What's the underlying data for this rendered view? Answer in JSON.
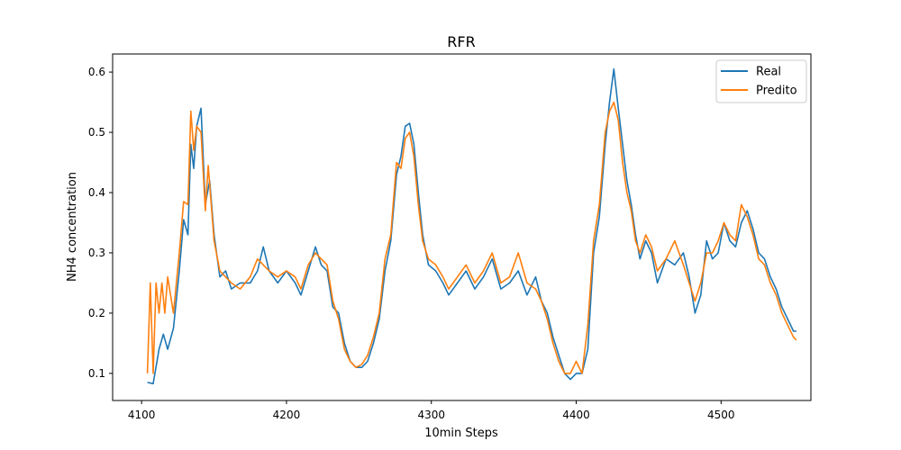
{
  "chart_data": {
    "type": "line",
    "title": "RFR",
    "xlabel": "10min Steps",
    "ylabel": "NH4 concentration",
    "xlim": [
      4080,
      4562
    ],
    "ylim": [
      0.055,
      0.63
    ],
    "xticks": [
      4100,
      4200,
      4300,
      4400,
      4500
    ],
    "yticks": [
      0.1,
      0.2,
      0.3,
      0.4,
      0.5,
      0.6
    ],
    "grid": false,
    "legend_position": "top-right",
    "series": [
      {
        "name": "Real",
        "color": "#1f77b4",
        "points": [
          [
            4104,
            0.085
          ],
          [
            4108,
            0.083
          ],
          [
            4112,
            0.14
          ],
          [
            4115,
            0.165
          ],
          [
            4118,
            0.14
          ],
          [
            4122,
            0.175
          ],
          [
            4126,
            0.27
          ],
          [
            4129,
            0.355
          ],
          [
            4132,
            0.33
          ],
          [
            4134,
            0.48
          ],
          [
            4136,
            0.44
          ],
          [
            4138,
            0.51
          ],
          [
            4141,
            0.54
          ],
          [
            4144,
            0.38
          ],
          [
            4147,
            0.42
          ],
          [
            4150,
            0.33
          ],
          [
            4154,
            0.26
          ],
          [
            4158,
            0.27
          ],
          [
            4162,
            0.24
          ],
          [
            4168,
            0.25
          ],
          [
            4175,
            0.25
          ],
          [
            4180,
            0.27
          ],
          [
            4184,
            0.31
          ],
          [
            4188,
            0.27
          ],
          [
            4194,
            0.25
          ],
          [
            4200,
            0.27
          ],
          [
            4206,
            0.25
          ],
          [
            4210,
            0.23
          ],
          [
            4215,
            0.27
          ],
          [
            4220,
            0.31
          ],
          [
            4224,
            0.28
          ],
          [
            4228,
            0.27
          ],
          [
            4232,
            0.21
          ],
          [
            4236,
            0.2
          ],
          [
            4240,
            0.15
          ],
          [
            4244,
            0.12
          ],
          [
            4248,
            0.11
          ],
          [
            4252,
            0.11
          ],
          [
            4256,
            0.12
          ],
          [
            4260,
            0.15
          ],
          [
            4264,
            0.19
          ],
          [
            4268,
            0.27
          ],
          [
            4272,
            0.32
          ],
          [
            4276,
            0.43
          ],
          [
            4279,
            0.46
          ],
          [
            4282,
            0.51
          ],
          [
            4285,
            0.515
          ],
          [
            4288,
            0.48
          ],
          [
            4291,
            0.4
          ],
          [
            4294,
            0.33
          ],
          [
            4298,
            0.28
          ],
          [
            4303,
            0.27
          ],
          [
            4308,
            0.25
          ],
          [
            4312,
            0.23
          ],
          [
            4318,
            0.25
          ],
          [
            4324,
            0.27
          ],
          [
            4330,
            0.24
          ],
          [
            4336,
            0.26
          ],
          [
            4342,
            0.29
          ],
          [
            4348,
            0.24
          ],
          [
            4354,
            0.25
          ],
          [
            4360,
            0.27
          ],
          [
            4366,
            0.23
          ],
          [
            4372,
            0.26
          ],
          [
            4376,
            0.22
          ],
          [
            4380,
            0.2
          ],
          [
            4384,
            0.16
          ],
          [
            4388,
            0.13
          ],
          [
            4392,
            0.1
          ],
          [
            4396,
            0.09
          ],
          [
            4400,
            0.1
          ],
          [
            4404,
            0.1
          ],
          [
            4408,
            0.14
          ],
          [
            4412,
            0.3
          ],
          [
            4416,
            0.36
          ],
          [
            4420,
            0.48
          ],
          [
            4423,
            0.55
          ],
          [
            4426,
            0.605
          ],
          [
            4429,
            0.54
          ],
          [
            4432,
            0.48
          ],
          [
            4435,
            0.42
          ],
          [
            4438,
            0.38
          ],
          [
            4441,
            0.33
          ],
          [
            4444,
            0.29
          ],
          [
            4448,
            0.32
          ],
          [
            4452,
            0.3
          ],
          [
            4456,
            0.25
          ],
          [
            4462,
            0.29
          ],
          [
            4468,
            0.28
          ],
          [
            4474,
            0.3
          ],
          [
            4478,
            0.26
          ],
          [
            4482,
            0.2
          ],
          [
            4486,
            0.23
          ],
          [
            4490,
            0.32
          ],
          [
            4494,
            0.29
          ],
          [
            4498,
            0.3
          ],
          [
            4502,
            0.35
          ],
          [
            4506,
            0.32
          ],
          [
            4510,
            0.31
          ],
          [
            4514,
            0.35
          ],
          [
            4518,
            0.37
          ],
          [
            4522,
            0.34
          ],
          [
            4526,
            0.3
          ],
          [
            4530,
            0.29
          ],
          [
            4534,
            0.26
          ],
          [
            4538,
            0.24
          ],
          [
            4542,
            0.21
          ],
          [
            4546,
            0.19
          ],
          [
            4550,
            0.17
          ],
          [
            4552,
            0.17
          ]
        ]
      },
      {
        "name": "Predito",
        "color": "#ff7f0e",
        "points": [
          [
            4104,
            0.1
          ],
          [
            4106,
            0.25
          ],
          [
            4108,
            0.1
          ],
          [
            4110,
            0.25
          ],
          [
            4112,
            0.2
          ],
          [
            4114,
            0.25
          ],
          [
            4116,
            0.2
          ],
          [
            4118,
            0.26
          ],
          [
            4122,
            0.2
          ],
          [
            4126,
            0.3
          ],
          [
            4129,
            0.385
          ],
          [
            4132,
            0.38
          ],
          [
            4134,
            0.535
          ],
          [
            4136,
            0.47
          ],
          [
            4138,
            0.51
          ],
          [
            4141,
            0.5
          ],
          [
            4144,
            0.37
          ],
          [
            4146,
            0.445
          ],
          [
            4150,
            0.32
          ],
          [
            4154,
            0.27
          ],
          [
            4158,
            0.26
          ],
          [
            4162,
            0.25
          ],
          [
            4168,
            0.24
          ],
          [
            4175,
            0.26
          ],
          [
            4180,
            0.29
          ],
          [
            4184,
            0.28
          ],
          [
            4188,
            0.27
          ],
          [
            4194,
            0.26
          ],
          [
            4200,
            0.27
          ],
          [
            4206,
            0.26
          ],
          [
            4210,
            0.24
          ],
          [
            4215,
            0.28
          ],
          [
            4220,
            0.3
          ],
          [
            4224,
            0.29
          ],
          [
            4228,
            0.28
          ],
          [
            4232,
            0.22
          ],
          [
            4236,
            0.19
          ],
          [
            4240,
            0.14
          ],
          [
            4244,
            0.12
          ],
          [
            4248,
            0.11
          ],
          [
            4252,
            0.115
          ],
          [
            4256,
            0.13
          ],
          [
            4260,
            0.16
          ],
          [
            4264,
            0.2
          ],
          [
            4268,
            0.29
          ],
          [
            4272,
            0.33
          ],
          [
            4276,
            0.45
          ],
          [
            4279,
            0.44
          ],
          [
            4282,
            0.49
          ],
          [
            4285,
            0.5
          ],
          [
            4288,
            0.46
          ],
          [
            4291,
            0.38
          ],
          [
            4294,
            0.32
          ],
          [
            4298,
            0.29
          ],
          [
            4303,
            0.28
          ],
          [
            4308,
            0.26
          ],
          [
            4312,
            0.24
          ],
          [
            4318,
            0.26
          ],
          [
            4324,
            0.28
          ],
          [
            4330,
            0.25
          ],
          [
            4336,
            0.27
          ],
          [
            4342,
            0.3
          ],
          [
            4348,
            0.25
          ],
          [
            4354,
            0.26
          ],
          [
            4360,
            0.3
          ],
          [
            4366,
            0.25
          ],
          [
            4372,
            0.24
          ],
          [
            4376,
            0.22
          ],
          [
            4380,
            0.19
          ],
          [
            4384,
            0.15
          ],
          [
            4388,
            0.12
          ],
          [
            4392,
            0.1
          ],
          [
            4396,
            0.1
          ],
          [
            4400,
            0.12
          ],
          [
            4404,
            0.1
          ],
          [
            4408,
            0.18
          ],
          [
            4412,
            0.32
          ],
          [
            4416,
            0.38
          ],
          [
            4420,
            0.5
          ],
          [
            4423,
            0.535
          ],
          [
            4426,
            0.55
          ],
          [
            4429,
            0.52
          ],
          [
            4432,
            0.45
          ],
          [
            4435,
            0.4
          ],
          [
            4438,
            0.37
          ],
          [
            4441,
            0.32
          ],
          [
            4444,
            0.3
          ],
          [
            4448,
            0.33
          ],
          [
            4452,
            0.31
          ],
          [
            4456,
            0.27
          ],
          [
            4462,
            0.29
          ],
          [
            4468,
            0.32
          ],
          [
            4474,
            0.28
          ],
          [
            4478,
            0.25
          ],
          [
            4482,
            0.22
          ],
          [
            4486,
            0.25
          ],
          [
            4490,
            0.3
          ],
          [
            4494,
            0.3
          ],
          [
            4498,
            0.32
          ],
          [
            4502,
            0.35
          ],
          [
            4506,
            0.33
          ],
          [
            4510,
            0.32
          ],
          [
            4514,
            0.38
          ],
          [
            4518,
            0.36
          ],
          [
            4522,
            0.33
          ],
          [
            4526,
            0.29
          ],
          [
            4530,
            0.28
          ],
          [
            4534,
            0.25
          ],
          [
            4538,
            0.23
          ],
          [
            4542,
            0.2
          ],
          [
            4546,
            0.18
          ],
          [
            4550,
            0.16
          ],
          [
            4552,
            0.155
          ]
        ]
      }
    ]
  }
}
